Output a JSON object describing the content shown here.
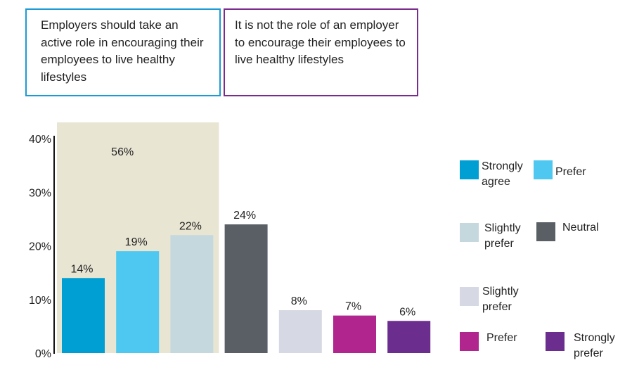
{
  "statements": {
    "left": "Employers should take an active role in encouraging their employees to live healthy lifestyles",
    "right": "It is not the role of an employer to encourage their employees to live healthy lifestyles"
  },
  "chart_data": {
    "type": "bar",
    "title": "",
    "xlabel": "",
    "ylabel": "",
    "ylim": [
      0,
      40
    ],
    "yticks": [
      0,
      10,
      20,
      30,
      40
    ],
    "ytick_labels": [
      "0%",
      "10%",
      "20%",
      "30%",
      "40%"
    ],
    "categories": [
      "Strongly agree",
      "Prefer",
      "Slightly prefer",
      "Neutral",
      "Slightly prefer",
      "Prefer",
      "Strongly prefer"
    ],
    "values": [
      14,
      19,
      22,
      24,
      8,
      7,
      6
    ],
    "value_labels": [
      "14%",
      "19%",
      "22%",
      "24%",
      "8%",
      "7%",
      "6%"
    ],
    "colors": [
      "#009fd3",
      "#4ec8f1",
      "#c5d8de",
      "#5a5f66",
      "#d6d8e3",
      "#b0258e",
      "#6b2d8e"
    ],
    "group_highlight": {
      "label": "56%",
      "categories": [
        0,
        1,
        2
      ],
      "color": "#e8e5d3"
    },
    "legend": [
      {
        "label": "Strongly agree",
        "color": "#009fd3"
      },
      {
        "label": "Prefer",
        "color": "#4ec8f1"
      },
      {
        "label": "Slightly prefer",
        "color": "#c5d8de"
      },
      {
        "label": "Neutral",
        "color": "#5a5f66"
      },
      {
        "label": "Slightly prefer",
        "color": "#d6d8e3"
      },
      {
        "label": "Prefer",
        "color": "#b0258e"
      },
      {
        "label": "Strongly prefer",
        "color": "#6b2d8e"
      }
    ]
  }
}
